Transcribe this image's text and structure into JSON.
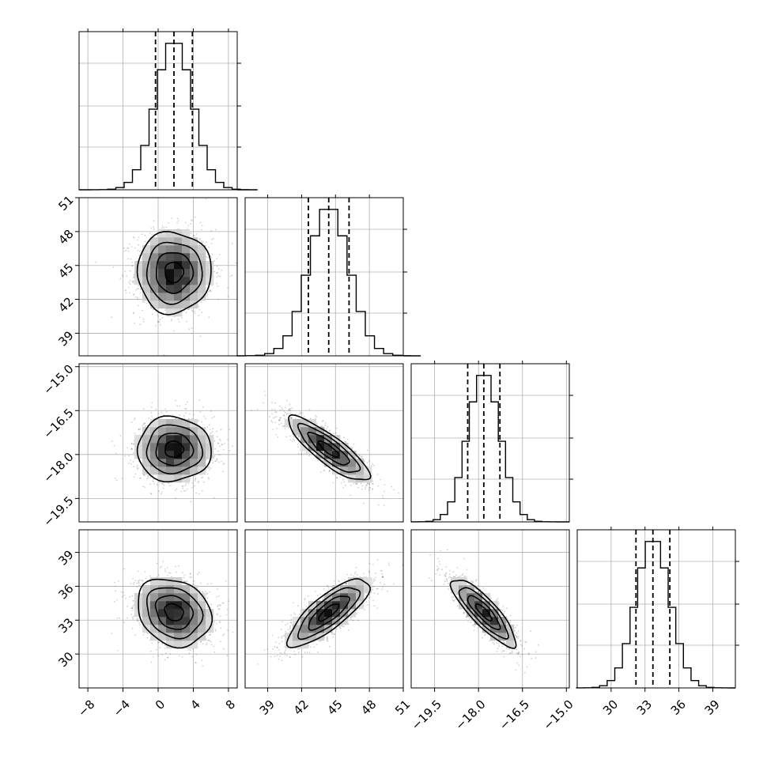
{
  "chart_data": {
    "type": "corner",
    "title": "",
    "parameters": [
      {
        "index": 0,
        "mean": 1.8,
        "std": 2.1,
        "range": [
          -9,
          9
        ],
        "ticks": [
          -8,
          -4,
          0,
          4,
          8
        ],
        "tick_labels": [
          "−8",
          "−4",
          "0",
          "4",
          "8"
        ],
        "quantiles": [
          -0.3,
          1.8,
          3.9
        ]
      },
      {
        "index": 1,
        "mean": 44.4,
        "std": 1.8,
        "range": [
          37,
          51
        ],
        "ticks": [
          39,
          42,
          45,
          48,
          51
        ],
        "tick_labels": [
          "39",
          "42",
          "45",
          "48",
          "51"
        ],
        "quantiles": [
          42.6,
          44.4,
          46.2
        ]
      },
      {
        "index": 2,
        "mean": -17.82,
        "std": 0.55,
        "range": [
          -20.3,
          -14.9
        ],
        "ticks": [
          -19.5,
          -18.0,
          -16.5,
          -15.0
        ],
        "tick_labels": [
          "−19.5",
          "−18.0",
          "−16.5",
          "−15.0"
        ],
        "quantiles": [
          -18.37,
          -17.82,
          -17.27
        ]
      },
      {
        "index": 3,
        "mean": 33.7,
        "std": 1.5,
        "range": [
          27,
          41
        ],
        "ticks": [
          30,
          33,
          36,
          39
        ],
        "tick_labels": [
          "30",
          "33",
          "36",
          "39"
        ],
        "quantiles": [
          32.2,
          33.7,
          35.2
        ]
      }
    ],
    "correlations": [
      [
        1.0,
        0.0,
        0.0,
        -0.2
      ],
      [
        0.0,
        1.0,
        -0.85,
        0.8
      ],
      [
        0.0,
        -0.85,
        1.0,
        -0.85
      ],
      [
        -0.2,
        0.8,
        -0.85,
        1.0
      ]
    ],
    "histograms": [
      {
        "bins": 20,
        "quantile_style": "dashed"
      },
      {
        "bins": 20,
        "quantile_style": "dashed"
      },
      {
        "bins": 20,
        "quantile_style": "dashed"
      },
      {
        "bins": 20,
        "quantile_style": "dashed"
      }
    ],
    "contour_levels_sigma": [
      0.5,
      1.0,
      1.5,
      2.0
    ],
    "grid": true,
    "point_color": "#000000",
    "line_color": "#000000"
  }
}
